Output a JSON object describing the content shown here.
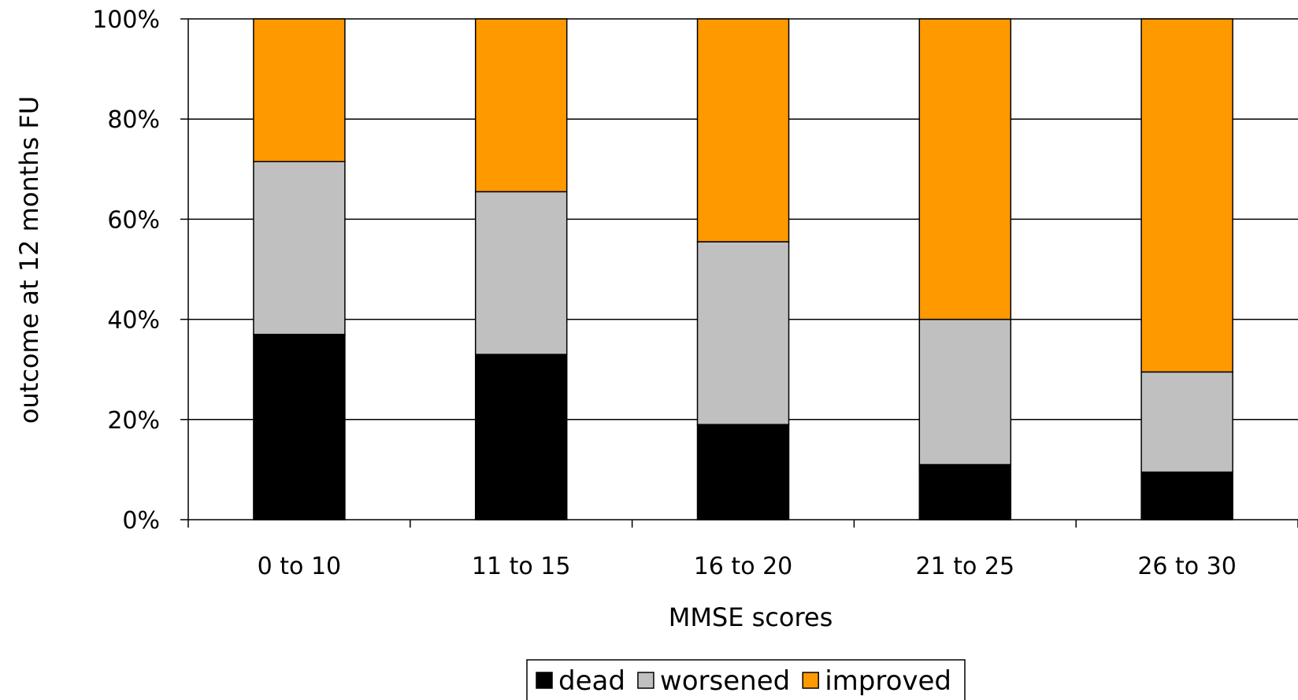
{
  "chart_data": {
    "type": "bar",
    "stacked": true,
    "categories": [
      "0 to 10",
      "11 to 15",
      "16 to 20",
      "21 to 25",
      "26 to 30"
    ],
    "series": [
      {
        "name": "dead",
        "values": [
          37,
          33,
          19,
          11,
          9.5
        ],
        "color": "#000000"
      },
      {
        "name": "worsened",
        "values": [
          34.5,
          32.5,
          36.5,
          29,
          20
        ],
        "color": "#c0c0c0"
      },
      {
        "name": "improved",
        "values": [
          28.5,
          34.5,
          44.5,
          60,
          70.5
        ],
        "color": "#ff9900"
      }
    ],
    "xlabel": "MMSE scores",
    "ylabel": "outcome at 12 months FU",
    "ylim": [
      0,
      100
    ],
    "yticks": [
      "0%",
      "20%",
      "40%",
      "60%",
      "80%",
      "100%"
    ],
    "grid": true,
    "legend": "bottom-center"
  }
}
